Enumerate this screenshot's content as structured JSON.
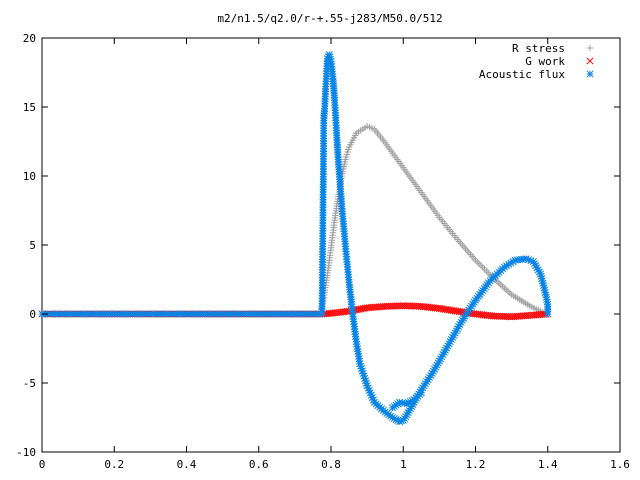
{
  "chart_data": {
    "type": "scatter",
    "title": "m2/n1.5/q2.0/r-+.55-j283/M50.0/512",
    "xlabel": "",
    "ylabel": "",
    "xlim": [
      0,
      1.6
    ],
    "ylim": [
      -10,
      20
    ],
    "xticks": [
      "0",
      "0.2",
      "0.4",
      "0.6",
      "0.8",
      "1",
      "1.2",
      "1.4",
      "1.6"
    ],
    "yticks": [
      "-10",
      "-5",
      "0",
      "5",
      "10",
      "15",
      "20"
    ],
    "grid": false,
    "legend_position": "top-right",
    "series": [
      {
        "name": "R stress",
        "color": "#a0a0a0",
        "marker": "plus",
        "points": [
          [
            0.0,
            0.0
          ],
          [
            0.7,
            0.0
          ],
          [
            0.77,
            0.0
          ],
          [
            0.78,
            1.2
          ],
          [
            0.79,
            2.8
          ],
          [
            0.8,
            4.8
          ],
          [
            0.81,
            6.8
          ],
          [
            0.82,
            8.5
          ],
          [
            0.83,
            10.0
          ],
          [
            0.84,
            11.2
          ],
          [
            0.85,
            12.1
          ],
          [
            0.87,
            13.1
          ],
          [
            0.9,
            13.6
          ],
          [
            0.92,
            13.4
          ],
          [
            0.95,
            12.4
          ],
          [
            1.0,
            10.6
          ],
          [
            1.05,
            8.8
          ],
          [
            1.1,
            7.0
          ],
          [
            1.15,
            5.4
          ],
          [
            1.2,
            3.9
          ],
          [
            1.25,
            2.6
          ],
          [
            1.3,
            1.4
          ],
          [
            1.35,
            0.6
          ],
          [
            1.38,
            0.2
          ],
          [
            1.4,
            0.0
          ]
        ]
      },
      {
        "name": "G work",
        "color": "#ff0000",
        "marker": "cross",
        "points": [
          [
            0.0,
            0.0
          ],
          [
            0.78,
            0.0
          ],
          [
            0.8,
            0.05
          ],
          [
            0.85,
            0.2
          ],
          [
            0.9,
            0.45
          ],
          [
            0.95,
            0.55
          ],
          [
            1.0,
            0.6
          ],
          [
            1.05,
            0.55
          ],
          [
            1.1,
            0.4
          ],
          [
            1.15,
            0.2
          ],
          [
            1.2,
            0.0
          ],
          [
            1.25,
            -0.15
          ],
          [
            1.3,
            -0.2
          ],
          [
            1.35,
            -0.1
          ],
          [
            1.4,
            0.0
          ]
        ]
      },
      {
        "name": "Acoustic flux",
        "color": "#0a85e6",
        "marker": "star",
        "points": [
          [
            0.0,
            0.0
          ],
          [
            0.775,
            0.0
          ],
          [
            0.778,
            8.1
          ],
          [
            0.78,
            14.2
          ],
          [
            0.782,
            14.7
          ],
          [
            0.785,
            16.3
          ],
          [
            0.788,
            17.6
          ],
          [
            0.79,
            18.5
          ],
          [
            0.795,
            18.8
          ],
          [
            0.8,
            18.3
          ],
          [
            0.805,
            17.2
          ],
          [
            0.81,
            15.5
          ],
          [
            0.815,
            13.3
          ],
          [
            0.82,
            11.2
          ],
          [
            0.83,
            7.8
          ],
          [
            0.84,
            4.9
          ],
          [
            0.85,
            2.3
          ],
          [
            0.86,
            0.0
          ],
          [
            0.87,
            -2.0
          ],
          [
            0.88,
            -3.6
          ],
          [
            0.9,
            -5.2
          ],
          [
            0.92,
            -6.4
          ],
          [
            0.95,
            -7.1
          ],
          [
            0.97,
            -7.5
          ],
          [
            0.99,
            -7.8
          ],
          [
            1.0,
            -7.7
          ],
          [
            1.01,
            -7.3
          ],
          [
            1.03,
            -6.4
          ],
          [
            1.05,
            -5.5
          ],
          [
            1.08,
            -4.3
          ],
          [
            1.1,
            -3.4
          ],
          [
            1.13,
            -2.0
          ],
          [
            1.16,
            -0.6
          ],
          [
            1.2,
            1.0
          ],
          [
            1.24,
            2.4
          ],
          [
            1.28,
            3.4
          ],
          [
            1.31,
            3.9
          ],
          [
            1.34,
            4.0
          ],
          [
            1.36,
            3.8
          ],
          [
            1.38,
            2.9
          ],
          [
            1.39,
            1.9
          ],
          [
            1.4,
            0.7
          ],
          [
            1.4,
            0.0
          ]
        ]
      },
      {
        "name": "",
        "color": "#0a85e6",
        "marker": "star",
        "points": [
          [
            1.05,
            -5.7
          ],
          [
            1.03,
            -6.2
          ],
          [
            1.01,
            -6.5
          ],
          [
            0.99,
            -6.4
          ],
          [
            0.97,
            -6.8
          ]
        ]
      }
    ]
  }
}
